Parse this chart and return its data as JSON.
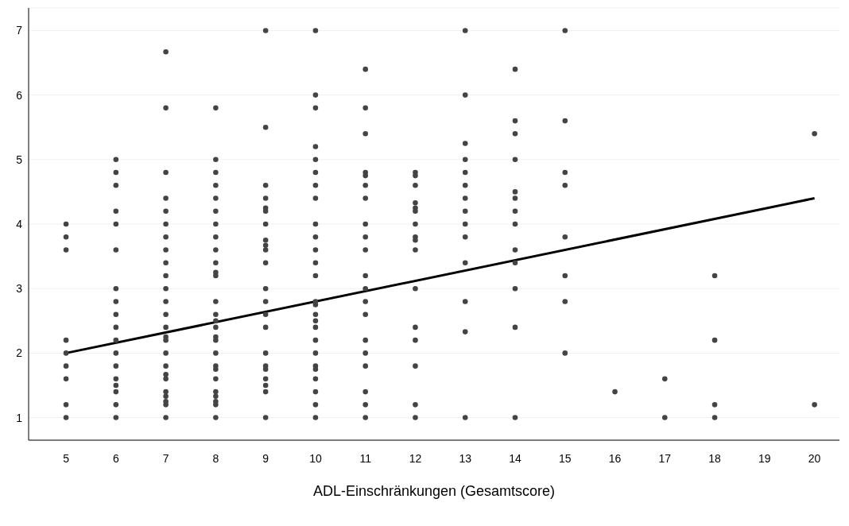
{
  "chart_data": {
    "type": "scatter",
    "xlabel": "ADL-Einschränkungen (Gesamtscore)",
    "xlim": [
      4.25,
      20.5
    ],
    "ylim": [
      0.65,
      7.35
    ],
    "xticks": [
      5,
      6,
      7,
      8,
      9,
      10,
      11,
      12,
      13,
      14,
      15,
      16,
      17,
      18,
      19,
      20
    ],
    "yticks": [
      1,
      2,
      3,
      4,
      5,
      6,
      7
    ],
    "grid": "y",
    "series": [
      {
        "marker": "circle",
        "color": "#444444",
        "x": [
          5,
          5,
          5,
          5,
          5,
          5,
          5,
          5,
          5,
          6,
          6,
          6,
          6,
          6,
          6,
          6,
          6,
          6,
          6,
          6,
          6,
          6,
          6,
          6,
          6,
          6,
          6,
          7,
          7,
          7,
          7,
          7,
          7,
          7,
          7,
          7,
          7,
          7,
          7,
          7,
          7,
          7,
          7,
          7,
          7,
          7,
          7,
          7,
          7,
          7,
          7,
          7,
          8,
          8,
          8,
          8,
          8,
          8,
          8,
          8,
          8,
          8,
          8,
          8,
          8,
          8,
          8,
          8,
          8,
          8,
          8,
          8,
          8,
          8,
          8,
          8,
          8,
          8,
          8,
          9,
          9,
          9,
          9,
          9,
          9,
          9,
          9,
          9,
          9,
          9,
          9,
          9,
          9,
          9,
          9,
          9,
          9,
          9,
          9,
          9,
          9,
          10,
          10,
          10,
          10,
          10,
          10,
          10,
          10,
          10,
          10,
          10,
          10,
          10,
          10,
          10,
          10,
          10,
          10,
          10,
          10,
          10,
          10,
          10,
          10,
          10,
          10,
          11,
          11,
          11,
          11,
          11,
          11,
          11,
          11,
          11,
          11,
          11,
          11,
          11,
          11,
          11,
          11,
          11,
          11,
          11,
          11,
          12,
          12,
          12,
          12,
          12,
          12,
          12,
          12,
          12,
          12,
          12,
          12,
          12,
          12,
          12,
          12,
          13,
          13,
          13,
          13,
          13,
          13,
          13,
          13,
          13,
          13,
          13,
          13,
          13,
          13,
          14,
          14,
          14,
          14,
          14,
          14,
          14,
          14,
          14,
          14,
          14,
          14,
          14,
          15,
          15,
          15,
          15,
          15,
          15,
          15,
          15,
          16,
          17,
          17,
          18,
          18,
          18,
          18,
          20,
          20
        ],
        "values": [
          4.0,
          3.8,
          3.6,
          2.2,
          2.0,
          1.8,
          1.6,
          1.2,
          1.0,
          5.0,
          4.8,
          4.6,
          4.2,
          4.0,
          3.6,
          3.0,
          2.8,
          2.6,
          2.4,
          2.2,
          2.0,
          1.8,
          1.6,
          1.5,
          1.4,
          1.2,
          1.0,
          6.67,
          5.8,
          4.8,
          4.4,
          4.2,
          4.0,
          3.8,
          3.6,
          3.4,
          3.2,
          3.0,
          2.8,
          2.6,
          2.4,
          2.25,
          2.2,
          2.0,
          1.8,
          1.67,
          1.6,
          1.4,
          1.33,
          1.25,
          1.2,
          1.0,
          5.8,
          5.0,
          4.8,
          4.6,
          4.4,
          4.2,
          4.0,
          3.8,
          3.6,
          3.4,
          3.25,
          3.2,
          2.8,
          2.6,
          2.5,
          2.4,
          2.25,
          2.2,
          2.0,
          1.8,
          1.75,
          1.6,
          1.4,
          1.33,
          1.25,
          1.2,
          1.0,
          7.0,
          5.5,
          4.6,
          4.4,
          4.25,
          4.2,
          4.0,
          3.75,
          3.67,
          3.6,
          3.4,
          3.0,
          2.8,
          2.6,
          2.4,
          2.0,
          1.8,
          1.75,
          1.6,
          1.5,
          1.4,
          1.0,
          7.0,
          6.0,
          5.8,
          5.2,
          5.0,
          4.8,
          4.6,
          4.4,
          4.0,
          3.8,
          3.6,
          3.4,
          3.2,
          2.8,
          2.75,
          2.6,
          2.5,
          2.4,
          2.2,
          2.0,
          1.8,
          1.75,
          1.6,
          1.4,
          1.2,
          1.0,
          6.4,
          5.8,
          5.4,
          4.8,
          4.75,
          4.6,
          4.4,
          4.0,
          3.8,
          3.6,
          3.2,
          3.0,
          2.8,
          2.6,
          2.2,
          2.0,
          1.8,
          1.4,
          1.2,
          1.0,
          4.8,
          4.75,
          4.6,
          4.33,
          4.25,
          4.2,
          4.0,
          3.8,
          3.75,
          3.6,
          3.0,
          2.4,
          2.2,
          1.8,
          1.2,
          1.0,
          7.0,
          6.0,
          5.25,
          5.0,
          4.8,
          4.6,
          4.4,
          4.2,
          4.0,
          3.8,
          3.4,
          2.8,
          2.33,
          1.0,
          6.4,
          5.6,
          5.4,
          5.0,
          4.5,
          4.4,
          4.2,
          4.0,
          3.6,
          3.4,
          3.0,
          2.4,
          1.0,
          7.0,
          5.6,
          4.8,
          4.6,
          3.8,
          3.2,
          2.8,
          2.0,
          1.4,
          1.6,
          1.0,
          3.2,
          2.2,
          1.2,
          1.0,
          5.4,
          1.2
        ]
      },
      {
        "type": "line",
        "color": "#000000",
        "x": [
          5,
          20
        ],
        "values": [
          2.0,
          4.4
        ]
      }
    ]
  }
}
